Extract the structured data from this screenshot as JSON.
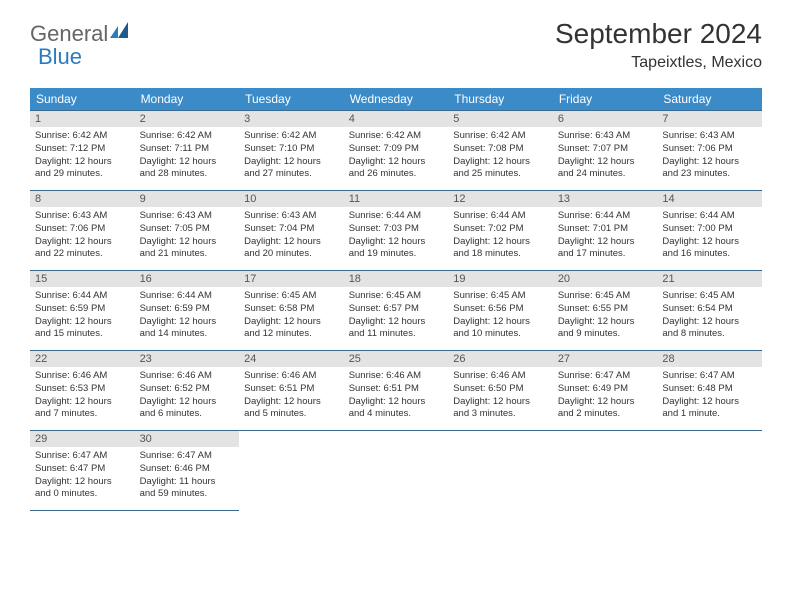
{
  "brand": {
    "part1": "General",
    "part2": "Blue"
  },
  "title": "September 2024",
  "location": "Tapeixtles, Mexico",
  "colors": {
    "header_bg": "#3b8bc9",
    "header_text": "#ffffff",
    "daynum_bg": "#e3e3e3",
    "border": "#3b6a8e",
    "logo_blue": "#2b7bbf",
    "logo_gray": "#666666",
    "text": "#333333"
  },
  "weekdays": [
    "Sunday",
    "Monday",
    "Tuesday",
    "Wednesday",
    "Thursday",
    "Friday",
    "Saturday"
  ],
  "weeks": [
    [
      {
        "n": "1",
        "sr": "Sunrise: 6:42 AM",
        "ss": "Sunset: 7:12 PM",
        "d1": "Daylight: 12 hours",
        "d2": "and 29 minutes."
      },
      {
        "n": "2",
        "sr": "Sunrise: 6:42 AM",
        "ss": "Sunset: 7:11 PM",
        "d1": "Daylight: 12 hours",
        "d2": "and 28 minutes."
      },
      {
        "n": "3",
        "sr": "Sunrise: 6:42 AM",
        "ss": "Sunset: 7:10 PM",
        "d1": "Daylight: 12 hours",
        "d2": "and 27 minutes."
      },
      {
        "n": "4",
        "sr": "Sunrise: 6:42 AM",
        "ss": "Sunset: 7:09 PM",
        "d1": "Daylight: 12 hours",
        "d2": "and 26 minutes."
      },
      {
        "n": "5",
        "sr": "Sunrise: 6:42 AM",
        "ss": "Sunset: 7:08 PM",
        "d1": "Daylight: 12 hours",
        "d2": "and 25 minutes."
      },
      {
        "n": "6",
        "sr": "Sunrise: 6:43 AM",
        "ss": "Sunset: 7:07 PM",
        "d1": "Daylight: 12 hours",
        "d2": "and 24 minutes."
      },
      {
        "n": "7",
        "sr": "Sunrise: 6:43 AM",
        "ss": "Sunset: 7:06 PM",
        "d1": "Daylight: 12 hours",
        "d2": "and 23 minutes."
      }
    ],
    [
      {
        "n": "8",
        "sr": "Sunrise: 6:43 AM",
        "ss": "Sunset: 7:06 PM",
        "d1": "Daylight: 12 hours",
        "d2": "and 22 minutes."
      },
      {
        "n": "9",
        "sr": "Sunrise: 6:43 AM",
        "ss": "Sunset: 7:05 PM",
        "d1": "Daylight: 12 hours",
        "d2": "and 21 minutes."
      },
      {
        "n": "10",
        "sr": "Sunrise: 6:43 AM",
        "ss": "Sunset: 7:04 PM",
        "d1": "Daylight: 12 hours",
        "d2": "and 20 minutes."
      },
      {
        "n": "11",
        "sr": "Sunrise: 6:44 AM",
        "ss": "Sunset: 7:03 PM",
        "d1": "Daylight: 12 hours",
        "d2": "and 19 minutes."
      },
      {
        "n": "12",
        "sr": "Sunrise: 6:44 AM",
        "ss": "Sunset: 7:02 PM",
        "d1": "Daylight: 12 hours",
        "d2": "and 18 minutes."
      },
      {
        "n": "13",
        "sr": "Sunrise: 6:44 AM",
        "ss": "Sunset: 7:01 PM",
        "d1": "Daylight: 12 hours",
        "d2": "and 17 minutes."
      },
      {
        "n": "14",
        "sr": "Sunrise: 6:44 AM",
        "ss": "Sunset: 7:00 PM",
        "d1": "Daylight: 12 hours",
        "d2": "and 16 minutes."
      }
    ],
    [
      {
        "n": "15",
        "sr": "Sunrise: 6:44 AM",
        "ss": "Sunset: 6:59 PM",
        "d1": "Daylight: 12 hours",
        "d2": "and 15 minutes."
      },
      {
        "n": "16",
        "sr": "Sunrise: 6:44 AM",
        "ss": "Sunset: 6:59 PM",
        "d1": "Daylight: 12 hours",
        "d2": "and 14 minutes."
      },
      {
        "n": "17",
        "sr": "Sunrise: 6:45 AM",
        "ss": "Sunset: 6:58 PM",
        "d1": "Daylight: 12 hours",
        "d2": "and 12 minutes."
      },
      {
        "n": "18",
        "sr": "Sunrise: 6:45 AM",
        "ss": "Sunset: 6:57 PM",
        "d1": "Daylight: 12 hours",
        "d2": "and 11 minutes."
      },
      {
        "n": "19",
        "sr": "Sunrise: 6:45 AM",
        "ss": "Sunset: 6:56 PM",
        "d1": "Daylight: 12 hours",
        "d2": "and 10 minutes."
      },
      {
        "n": "20",
        "sr": "Sunrise: 6:45 AM",
        "ss": "Sunset: 6:55 PM",
        "d1": "Daylight: 12 hours",
        "d2": "and 9 minutes."
      },
      {
        "n": "21",
        "sr": "Sunrise: 6:45 AM",
        "ss": "Sunset: 6:54 PM",
        "d1": "Daylight: 12 hours",
        "d2": "and 8 minutes."
      }
    ],
    [
      {
        "n": "22",
        "sr": "Sunrise: 6:46 AM",
        "ss": "Sunset: 6:53 PM",
        "d1": "Daylight: 12 hours",
        "d2": "and 7 minutes."
      },
      {
        "n": "23",
        "sr": "Sunrise: 6:46 AM",
        "ss": "Sunset: 6:52 PM",
        "d1": "Daylight: 12 hours",
        "d2": "and 6 minutes."
      },
      {
        "n": "24",
        "sr": "Sunrise: 6:46 AM",
        "ss": "Sunset: 6:51 PM",
        "d1": "Daylight: 12 hours",
        "d2": "and 5 minutes."
      },
      {
        "n": "25",
        "sr": "Sunrise: 6:46 AM",
        "ss": "Sunset: 6:51 PM",
        "d1": "Daylight: 12 hours",
        "d2": "and 4 minutes."
      },
      {
        "n": "26",
        "sr": "Sunrise: 6:46 AM",
        "ss": "Sunset: 6:50 PM",
        "d1": "Daylight: 12 hours",
        "d2": "and 3 minutes."
      },
      {
        "n": "27",
        "sr": "Sunrise: 6:47 AM",
        "ss": "Sunset: 6:49 PM",
        "d1": "Daylight: 12 hours",
        "d2": "and 2 minutes."
      },
      {
        "n": "28",
        "sr": "Sunrise: 6:47 AM",
        "ss": "Sunset: 6:48 PM",
        "d1": "Daylight: 12 hours",
        "d2": "and 1 minute."
      }
    ],
    [
      {
        "n": "29",
        "sr": "Sunrise: 6:47 AM",
        "ss": "Sunset: 6:47 PM",
        "d1": "Daylight: 12 hours",
        "d2": "and 0 minutes."
      },
      {
        "n": "30",
        "sr": "Sunrise: 6:47 AM",
        "ss": "Sunset: 6:46 PM",
        "d1": "Daylight: 11 hours",
        "d2": "and 59 minutes."
      },
      null,
      null,
      null,
      null,
      null
    ]
  ]
}
